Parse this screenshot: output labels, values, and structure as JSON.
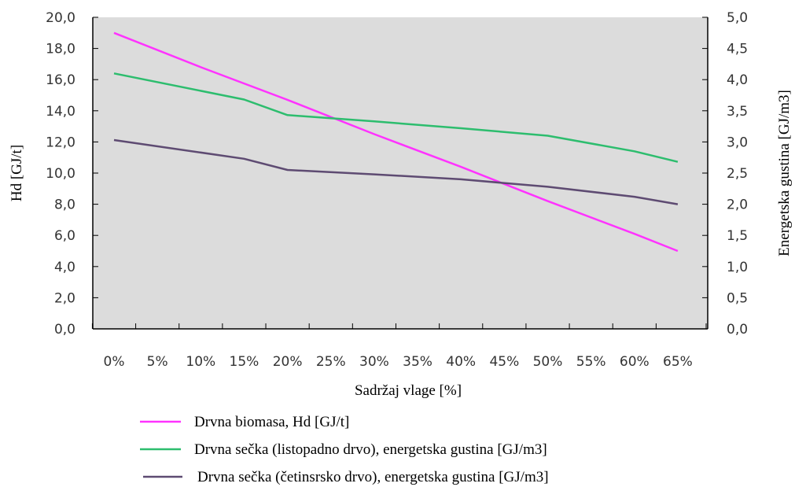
{
  "chart_data": {
    "type": "line",
    "xlabel": "Sadržaj vlage [%]",
    "ylabel_left": "Hd [GJ/t]",
    "ylabel_right": "Energetska gustina [GJ/m3]",
    "categories": [
      "0%",
      "5%",
      "10%",
      "15%",
      "20%",
      "25%",
      "30%",
      "35%",
      "40%",
      "45%",
      "50%",
      "55%",
      "60%",
      "65%"
    ],
    "x_values": [
      0,
      5,
      10,
      15,
      20,
      25,
      30,
      35,
      40,
      45,
      50,
      55,
      60,
      65
    ],
    "ylim_left": [
      0,
      20
    ],
    "ylim_right": [
      0,
      5
    ],
    "yticks_left": [
      "0,0",
      "2,0",
      "4,0",
      "6,0",
      "8,0",
      "10,0",
      "12,0",
      "14,0",
      "16,0",
      "18,0",
      "20,0"
    ],
    "yticks_right": [
      "0,0",
      "0,5",
      "1,0",
      "1,5",
      "2,0",
      "2,5",
      "3,0",
      "3,5",
      "4,0",
      "4,5",
      "5,0"
    ],
    "grid": false,
    "plot_background": "#dcdcdc",
    "legend_position": "bottom",
    "series": [
      {
        "name": "Drvna biomasa, Hd [GJ/t]",
        "axis": "left",
        "color": "#ff33ff",
        "x": [
          0,
          10,
          20,
          30,
          40,
          50,
          60,
          65
        ],
        "values": [
          19.0,
          16.8,
          14.7,
          12.5,
          10.4,
          8.2,
          6.1,
          5.0
        ]
      },
      {
        "name": "Drvna sečka (listopadno drvo), energetska gustina [GJ/m3]",
        "axis": "right",
        "color": "#2dbd6e",
        "x": [
          0,
          15,
          20,
          30,
          40,
          50,
          60,
          65
        ],
        "values": [
          4.1,
          3.68,
          3.43,
          3.33,
          3.22,
          3.1,
          2.85,
          2.68
        ]
      },
      {
        "name": "Drvna sečka (četinsrsko drvo), energetska gustina [GJ/m3]",
        "axis": "right",
        "color": "#5e4b72",
        "x": [
          0,
          15,
          20,
          30,
          40,
          50,
          60,
          65
        ],
        "values": [
          3.03,
          2.73,
          2.55,
          2.48,
          2.4,
          2.28,
          2.12,
          2.0
        ]
      }
    ]
  }
}
